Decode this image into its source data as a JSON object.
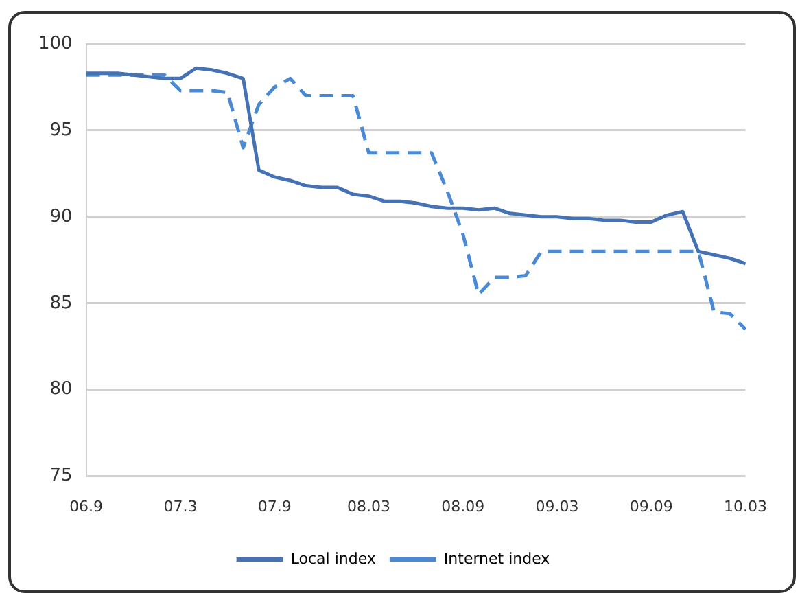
{
  "chart_data": {
    "type": "line",
    "categories": [
      "06.9",
      null,
      null,
      null,
      null,
      null,
      "07.3",
      null,
      null,
      null,
      null,
      null,
      "07.9",
      null,
      null,
      null,
      null,
      null,
      "08.03",
      null,
      null,
      null,
      null,
      null,
      "08.09",
      null,
      null,
      null,
      null,
      null,
      "09.03",
      null,
      null,
      null,
      null,
      null,
      "09.09",
      null,
      null,
      null,
      null,
      null,
      "10.03"
    ],
    "series": [
      {
        "name": "Local index",
        "color": "#4472b4",
        "line_style": "solid",
        "values": [
          98.3,
          98.3,
          98.3,
          98.2,
          98.1,
          98.0,
          98.0,
          98.6,
          98.5,
          98.3,
          98.0,
          92.7,
          92.3,
          92.1,
          91.8,
          91.7,
          91.7,
          91.3,
          91.2,
          90.9,
          90.9,
          90.8,
          90.6,
          90.5,
          90.5,
          90.4,
          90.5,
          90.2,
          90.1,
          90.0,
          90.0,
          89.9,
          89.9,
          89.8,
          89.8,
          89.7,
          89.7,
          90.1,
          90.3,
          88.0,
          87.8,
          87.6,
          87.3
        ]
      },
      {
        "name": "Internet index",
        "color": "#4a8ad4",
        "line_style": "dashed",
        "values": [
          98.2,
          98.2,
          98.2,
          98.2,
          98.2,
          98.2,
          97.3,
          97.3,
          97.3,
          97.2,
          94.0,
          96.5,
          97.5,
          98.0,
          97.0,
          97.0,
          97.0,
          97.0,
          93.7,
          93.7,
          93.7,
          93.7,
          93.7,
          91.5,
          89.0,
          85.5,
          86.5,
          86.5,
          86.6,
          88.0,
          88.0,
          88.0,
          88.0,
          88.0,
          88.0,
          88.0,
          88.0,
          88.0,
          88.0,
          88.0,
          84.5,
          84.4,
          83.5
        ]
      }
    ],
    "ylim": [
      75,
      100
    ],
    "yticks": [
      75,
      80,
      85,
      90,
      95,
      100
    ],
    "grid": "y",
    "legend": "bottom",
    "marker": "none"
  }
}
